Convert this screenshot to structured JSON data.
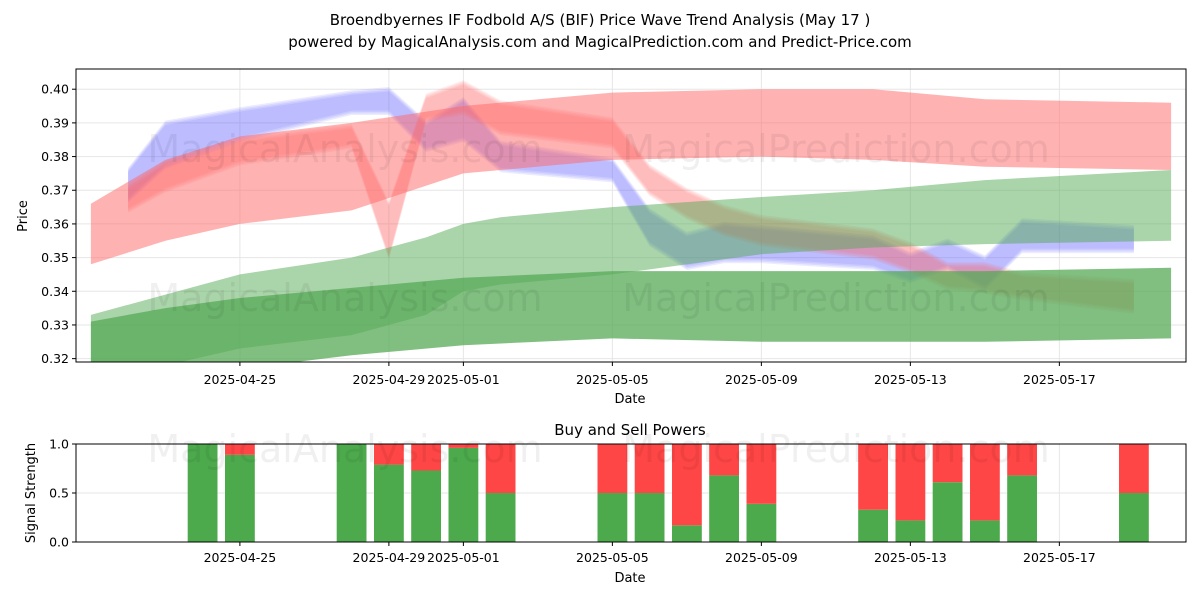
{
  "header": {
    "title_line1": "Broendbyernes IF Fodbold A/S (BIF) Price Wave Trend Analysis (May 17 )",
    "title_line2": "powered by MagicalAnalysis.com and MagicalPrediction.com and Predict-Price.com"
  },
  "watermarks": {
    "left": "MagicalAnalysis.com",
    "right": "MagicalPrediction.com"
  },
  "colors": {
    "blue_band": "#6666ff",
    "red_band": "#ff6666",
    "green_band": "#55aa55",
    "buy_bar": "#4caa4c",
    "sell_bar": "#ff4646",
    "grid": "#e6e6e6"
  },
  "chart_data": [
    {
      "type": "area",
      "title": "",
      "xlabel": "Date",
      "ylabel": "Price",
      "x_range": [
        "2025-04-21",
        "2025-05-20"
      ],
      "ylim": [
        0.319,
        0.406
      ],
      "x_ticks": [
        "2025-04-25",
        "2025-04-29",
        "2025-05-01",
        "2025-05-05",
        "2025-05-09",
        "2025-05-13",
        "2025-05-17"
      ],
      "y_ticks": [
        0.32,
        0.33,
        0.34,
        0.35,
        0.36,
        0.37,
        0.38,
        0.39,
        0.4
      ],
      "grid": true,
      "series": [
        {
          "color": "blue",
          "x": [
            "2025-04-22",
            "2025-04-23",
            "2025-04-25",
            "2025-04-28",
            "2025-04-29",
            "2025-04-30",
            "2025-05-01",
            "2025-05-02",
            "2025-05-05",
            "2025-05-06",
            "2025-05-07",
            "2025-05-08",
            "2025-05-09",
            "2025-05-12",
            "2025-05-13",
            "2025-05-14",
            "2025-05-15",
            "2025-05-16",
            "2025-05-19"
          ],
          "upper": [
            0.376,
            0.39,
            0.394,
            0.399,
            0.4,
            0.39,
            0.397,
            0.384,
            0.379,
            0.364,
            0.357,
            0.36,
            0.359,
            0.356,
            0.351,
            0.355,
            0.35,
            0.361,
            0.359
          ],
          "lower": [
            0.367,
            0.377,
            0.385,
            0.393,
            0.393,
            0.382,
            0.385,
            0.376,
            0.373,
            0.354,
            0.347,
            0.349,
            0.349,
            0.347,
            0.343,
            0.347,
            0.341,
            0.352,
            0.352
          ]
        },
        {
          "color": "red",
          "x": [
            "2025-04-22",
            "2025-04-23",
            "2025-04-25",
            "2025-04-28",
            "2025-04-29",
            "2025-04-30",
            "2025-05-01",
            "2025-05-02",
            "2025-05-05",
            "2025-05-06",
            "2025-05-07",
            "2025-05-08",
            "2025-05-09",
            "2025-05-12",
            "2025-05-13",
            "2025-05-14",
            "2025-05-15",
            "2025-05-16",
            "2025-05-19"
          ],
          "upper": [
            0.371,
            0.378,
            0.385,
            0.389,
            0.366,
            0.398,
            0.402,
            0.396,
            0.391,
            0.377,
            0.37,
            0.365,
            0.362,
            0.358,
            0.354,
            0.348,
            0.348,
            0.345,
            0.343
          ],
          "lower": [
            0.364,
            0.37,
            0.378,
            0.383,
            0.35,
            0.391,
            0.393,
            0.387,
            0.383,
            0.369,
            0.362,
            0.357,
            0.354,
            0.35,
            0.346,
            0.341,
            0.34,
            0.338,
            0.334
          ]
        },
        {
          "color": "red",
          "x": [
            "2025-04-21",
            "2025-04-23",
            "2025-04-25",
            "2025-04-28",
            "2025-05-01",
            "2025-05-05",
            "2025-05-09",
            "2025-05-12",
            "2025-05-15",
            "2025-05-20"
          ],
          "upper": [
            0.366,
            0.379,
            0.386,
            0.39,
            0.395,
            0.399,
            0.4,
            0.4,
            0.397,
            0.396
          ],
          "lower": [
            0.348,
            0.355,
            0.36,
            0.364,
            0.375,
            0.379,
            0.38,
            0.379,
            0.377,
            0.376
          ]
        },
        {
          "color": "green",
          "x": [
            "2025-04-21",
            "2025-04-23",
            "2025-04-25",
            "2025-04-28",
            "2025-04-30",
            "2025-05-01",
            "2025-05-02",
            "2025-05-05",
            "2025-05-09",
            "2025-05-12",
            "2025-05-15",
            "2025-05-20"
          ],
          "upper": [
            0.333,
            0.339,
            0.345,
            0.35,
            0.356,
            0.36,
            0.362,
            0.365,
            0.368,
            0.37,
            0.373,
            0.376
          ],
          "lower": [
            0.314,
            0.318,
            0.323,
            0.327,
            0.333,
            0.34,
            0.342,
            0.345,
            0.351,
            0.353,
            0.354,
            0.355
          ]
        },
        {
          "color": "green",
          "x": [
            "2025-04-21",
            "2025-04-23",
            "2025-04-25",
            "2025-04-28",
            "2025-05-01",
            "2025-05-05",
            "2025-05-09",
            "2025-05-12",
            "2025-05-15",
            "2025-05-20"
          ],
          "upper": [
            0.331,
            0.335,
            0.338,
            0.341,
            0.344,
            0.346,
            0.346,
            0.346,
            0.346,
            0.347
          ],
          "lower": [
            0.306,
            0.312,
            0.317,
            0.321,
            0.324,
            0.326,
            0.325,
            0.325,
            0.325,
            0.326
          ]
        }
      ]
    },
    {
      "type": "bar",
      "title": "Buy and Sell Powers",
      "xlabel": "Date",
      "ylabel": "Signal Strength",
      "ylim": [
        0,
        1
      ],
      "y_ticks": [
        "0.0",
        "0.5",
        "1.0"
      ],
      "x_ticks": [
        "2025-04-25",
        "2025-04-29",
        "2025-05-01",
        "2025-05-05",
        "2025-05-09",
        "2025-05-13",
        "2025-05-17"
      ],
      "series": [
        {
          "name": "buy",
          "color": "green"
        },
        {
          "name": "sell",
          "color": "red"
        }
      ],
      "x": [
        "2025-04-24",
        "2025-04-25",
        "2025-04-28",
        "2025-04-29",
        "2025-04-30",
        "2025-05-01",
        "2025-05-02",
        "2025-05-05",
        "2025-05-06",
        "2025-05-07",
        "2025-05-08",
        "2025-05-09",
        "2025-05-12",
        "2025-05-13",
        "2025-05-14",
        "2025-05-15",
        "2025-05-16",
        "2025-05-19"
      ],
      "buy": [
        1.0,
        0.89,
        1.0,
        0.79,
        0.73,
        0.96,
        0.5,
        0.5,
        0.5,
        0.17,
        0.68,
        0.39,
        0.33,
        0.22,
        0.61,
        0.22,
        0.68,
        0.5
      ],
      "sell": [
        0.0,
        0.11,
        0.0,
        0.21,
        0.27,
        0.04,
        0.5,
        0.5,
        0.5,
        0.83,
        0.32,
        0.61,
        0.67,
        0.78,
        0.39,
        0.78,
        0.32,
        0.5
      ]
    }
  ]
}
